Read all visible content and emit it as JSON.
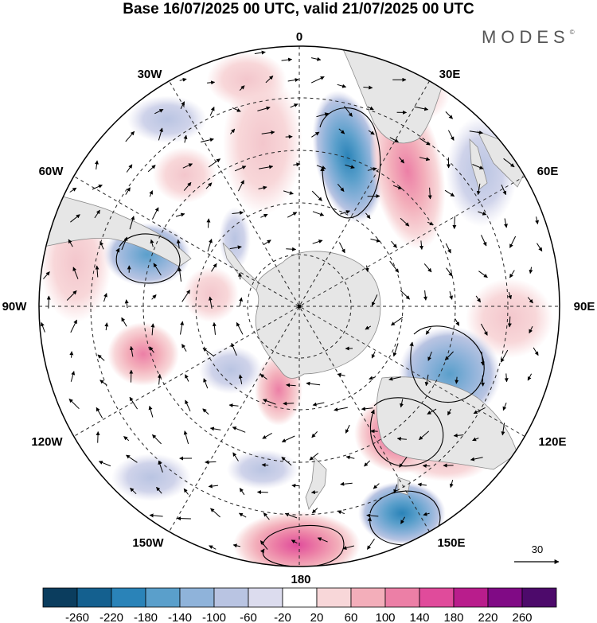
{
  "title": "Base 16/07/2025 00 UTC, valid 21/07/2025 00 UTC",
  "brand": "MODES",
  "brand_mark": "©",
  "longitude_labels": {
    "lon_0": "0",
    "lon_30e": "30E",
    "lon_60e": "60E",
    "lon_90e": "90E",
    "lon_120e": "120E",
    "lon_150e": "150E",
    "lon_180": "180",
    "lon_150w": "150W",
    "lon_120w": "120W",
    "lon_90w": "90W",
    "lon_60w": "60W",
    "lon_30w": "30W"
  },
  "reference_vector_label": "30",
  "colorbar": {
    "ticks": [
      "-260",
      "-220",
      "-180",
      "-140",
      "-100",
      "-60",
      "-20",
      "20",
      "60",
      "100",
      "140",
      "180",
      "220",
      "260"
    ],
    "colors": [
      "#0b3d5e",
      "#14608f",
      "#2a83b8",
      "#5a9fcb",
      "#8fb3da",
      "#b9c4e2",
      "#dcdcee",
      "#ffffff",
      "#f8d7d9",
      "#f3aeba",
      "#ec7fa6",
      "#e04b9b",
      "#b91d8c",
      "#800a85",
      "#4d0a6b"
    ]
  },
  "anomalies": [
    {
      "name": "blue-30e",
      "value": -200
    },
    {
      "name": "pink-45e",
      "value": 120
    },
    {
      "name": "pink-25e-n",
      "value": 70
    },
    {
      "name": "blue-60e",
      "value": -80
    },
    {
      "name": "pink-90e",
      "value": 90
    },
    {
      "name": "blue-110e",
      "value": -150
    },
    {
      "name": "pink-130e",
      "value": 170
    },
    {
      "name": "blue-150e",
      "value": -170
    },
    {
      "name": "pink-180",
      "value": 150
    },
    {
      "name": "pink-160w",
      "value": 110
    },
    {
      "name": "blue-140w",
      "value": -70
    },
    {
      "name": "pink-100w",
      "value": 90
    },
    {
      "name": "pink-90w-n",
      "value": 60
    },
    {
      "name": "blue-70w",
      "value": -100
    },
    {
      "name": "pink-40w",
      "value": 50
    },
    {
      "name": "blue-20w",
      "value": -60
    },
    {
      "name": "pink-10e-n",
      "value": 60
    },
    {
      "name": "pink-0-n",
      "value": 50
    },
    {
      "name": "blue-45w",
      "value": -60
    }
  ]
}
